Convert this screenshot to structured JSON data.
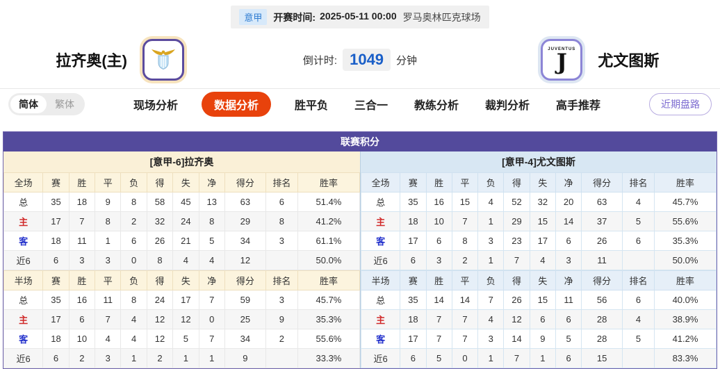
{
  "top_bar": {
    "league_badge": "意甲",
    "kickoff_label": "开赛时间:",
    "kickoff_time": "2025-05-11 00:00",
    "venue": "罗马奥林匹克球场"
  },
  "header": {
    "home_team": "拉齐奥(主)",
    "away_team": "尤文图斯",
    "away_logo_text": "JUVENTUS",
    "away_logo_glyph": "J",
    "countdown_label": "倒计时:",
    "countdown_value": "1049",
    "countdown_unit": "分钟"
  },
  "nav": {
    "lang_simplified": "简体",
    "lang_traditional": "繁体",
    "tabs": [
      {
        "label": "现场分析",
        "name": "live-analysis",
        "active": false
      },
      {
        "label": "数据分析",
        "name": "data-analysis",
        "active": true
      },
      {
        "label": "胜平负",
        "name": "win-draw-lose",
        "active": false
      },
      {
        "label": "三合一",
        "name": "three-in-one",
        "active": false
      },
      {
        "label": "教练分析",
        "name": "coach-analysis",
        "active": false
      },
      {
        "label": "裁判分析",
        "name": "referee-analysis",
        "active": false
      },
      {
        "label": "高手推荐",
        "name": "expert-picks",
        "active": false
      }
    ],
    "recent_button": "近期盘路"
  },
  "section_title": "联赛积分",
  "colors": {
    "accent_red": "#e8420c",
    "panel_purple": "#534a9c",
    "home_header_bg": "#faf0d7",
    "away_header_bg": "#d8e7f3",
    "countdown_blue": "#1a5fc8",
    "home_row_red": "#d02a2a",
    "away_row_blue": "#2432cc"
  },
  "tables": {
    "home": {
      "team_header": "[意甲-6]拉齐奥",
      "full": {
        "headers": [
          "全场",
          "赛",
          "胜",
          "平",
          "负",
          "得",
          "失",
          "净",
          "得分",
          "排名",
          "胜率"
        ],
        "rows": [
          {
            "label": "总",
            "cells": [
              "35",
              "18",
              "9",
              "8",
              "58",
              "45",
              "13",
              "63",
              "6",
              "51.4%"
            ]
          },
          {
            "label": "主",
            "label_color": "#d02a2a",
            "cells": [
              "17",
              "7",
              "8",
              "2",
              "32",
              "24",
              "8",
              "29",
              "8",
              "41.2%"
            ]
          },
          {
            "label": "客",
            "label_color": "#2432cc",
            "cells": [
              "18",
              "11",
              "1",
              "6",
              "26",
              "21",
              "5",
              "34",
              "3",
              "61.1%"
            ]
          },
          {
            "label": "近6",
            "cells": [
              "6",
              "3",
              "3",
              "0",
              "8",
              "4",
              "4",
              "12",
              "",
              "50.0%"
            ]
          }
        ]
      },
      "half": {
        "headers": [
          "半场",
          "赛",
          "胜",
          "平",
          "负",
          "得",
          "失",
          "净",
          "得分",
          "排名",
          "胜率"
        ],
        "rows": [
          {
            "label": "总",
            "cells": [
              "35",
              "16",
              "11",
              "8",
              "24",
              "17",
              "7",
              "59",
              "3",
              "45.7%"
            ]
          },
          {
            "label": "主",
            "label_color": "#d02a2a",
            "cells": [
              "17",
              "6",
              "7",
              "4",
              "12",
              "12",
              "0",
              "25",
              "9",
              "35.3%"
            ]
          },
          {
            "label": "客",
            "label_color": "#2432cc",
            "cells": [
              "18",
              "10",
              "4",
              "4",
              "12",
              "5",
              "7",
              "34",
              "2",
              "55.6%"
            ]
          },
          {
            "label": "近6",
            "cells": [
              "6",
              "2",
              "3",
              "1",
              "2",
              "1",
              "1",
              "9",
              "",
              "33.3%"
            ]
          }
        ]
      }
    },
    "away": {
      "team_header": "[意甲-4]尤文图斯",
      "full": {
        "headers": [
          "全场",
          "赛",
          "胜",
          "平",
          "负",
          "得",
          "失",
          "净",
          "得分",
          "排名",
          "胜率"
        ],
        "rows": [
          {
            "label": "总",
            "cells": [
              "35",
              "16",
              "15",
              "4",
              "52",
              "32",
              "20",
              "63",
              "4",
              "45.7%"
            ]
          },
          {
            "label": "主",
            "label_color": "#d02a2a",
            "cells": [
              "18",
              "10",
              "7",
              "1",
              "29",
              "15",
              "14",
              "37",
              "5",
              "55.6%"
            ]
          },
          {
            "label": "客",
            "label_color": "#2432cc",
            "cells": [
              "17",
              "6",
              "8",
              "3",
              "23",
              "17",
              "6",
              "26",
              "6",
              "35.3%"
            ]
          },
          {
            "label": "近6",
            "cells": [
              "6",
              "3",
              "2",
              "1",
              "7",
              "4",
              "3",
              "11",
              "",
              "50.0%"
            ]
          }
        ]
      },
      "half": {
        "headers": [
          "半场",
          "赛",
          "胜",
          "平",
          "负",
          "得",
          "失",
          "净",
          "得分",
          "排名",
          "胜率"
        ],
        "rows": [
          {
            "label": "总",
            "cells": [
              "35",
              "14",
              "14",
              "7",
              "26",
              "15",
              "11",
              "56",
              "6",
              "40.0%"
            ]
          },
          {
            "label": "主",
            "label_color": "#d02a2a",
            "cells": [
              "18",
              "7",
              "7",
              "4",
              "12",
              "6",
              "6",
              "28",
              "4",
              "38.9%"
            ]
          },
          {
            "label": "客",
            "label_color": "#2432cc",
            "cells": [
              "17",
              "7",
              "7",
              "3",
              "14",
              "9",
              "5",
              "28",
              "5",
              "41.2%"
            ]
          },
          {
            "label": "近6",
            "cells": [
              "6",
              "5",
              "0",
              "1",
              "7",
              "1",
              "6",
              "15",
              "",
              "83.3%"
            ]
          }
        ]
      }
    }
  }
}
